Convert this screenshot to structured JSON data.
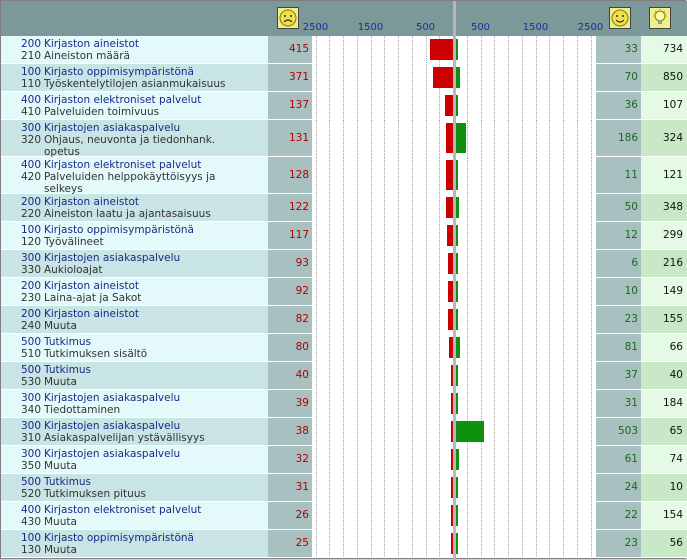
{
  "colors": {
    "header": "#7d9898",
    "label_light": "#e4fafa",
    "label_dark": "#c8e4e4",
    "neg_col": "#a8c0c0",
    "pos_col": "#a8c0c0",
    "tot_light": "#e4fae4",
    "tot_dark": "#c8e8c8",
    "neg_bar": "#cc0000",
    "pos_bar": "#109010"
  },
  "icons": {
    "negative": "sad-face-icon",
    "positive": "happy-face-icon",
    "total": "lightbulb-icon"
  },
  "chart_data": {
    "type": "bar",
    "orientation": "horizontal-diverging",
    "axis_ticks": [
      {
        "label": "2500",
        "value": -2500
      },
      {
        "label": "1500",
        "value": -1500
      },
      {
        "label": "500",
        "value": -500
      },
      {
        "label": "500",
        "value": 500
      },
      {
        "label": "1500",
        "value": 1500
      },
      {
        "label": "2500",
        "value": 2500
      }
    ],
    "rows": [
      {
        "cat_code": "200",
        "cat": "Kirjaston aineistot",
        "sub_code": "210",
        "sub": [
          "Aineiston määrä"
        ],
        "neg": 415,
        "pos": 33,
        "total": 734
      },
      {
        "cat_code": "100",
        "cat": "Kirjasto oppimisympäristönä",
        "sub_code": "110",
        "sub": [
          "Työskentelytilojen asianmukaisuus"
        ],
        "neg": 371,
        "pos": 70,
        "total": 850
      },
      {
        "cat_code": "400",
        "cat": "Kirjaston elektroniset palvelut",
        "sub_code": "410",
        "sub": [
          "Palveluiden toimivuus"
        ],
        "neg": 137,
        "pos": 36,
        "total": 107
      },
      {
        "cat_code": "300",
        "cat": "Kirjastojen asiakaspalvelu",
        "sub_code": "320",
        "sub": [
          "Ohjaus, neuvonta ja tiedonhank.",
          "opetus"
        ],
        "neg": 131,
        "pos": 186,
        "total": 324
      },
      {
        "cat_code": "400",
        "cat": "Kirjaston elektroniset palvelut",
        "sub_code": "420",
        "sub": [
          "Palveluiden helppokäyttöisyys ja",
          "selkeys"
        ],
        "neg": 128,
        "pos": 11,
        "total": 121
      },
      {
        "cat_code": "200",
        "cat": "Kirjaston aineistot",
        "sub_code": "220",
        "sub": [
          "Aineiston laatu ja ajantasaisuus"
        ],
        "neg": 122,
        "pos": 50,
        "total": 348
      },
      {
        "cat_code": "100",
        "cat": "Kirjasto oppimisympäristönä",
        "sub_code": "120",
        "sub": [
          "Työvälineet"
        ],
        "neg": 117,
        "pos": 12,
        "total": 299
      },
      {
        "cat_code": "300",
        "cat": "Kirjastojen asiakaspalvelu",
        "sub_code": "330",
        "sub": [
          "Aukioloajat"
        ],
        "neg": 93,
        "pos": 6,
        "total": 216
      },
      {
        "cat_code": "200",
        "cat": "Kirjaston aineistot",
        "sub_code": "230",
        "sub": [
          "Laina-ajat ja Sakot"
        ],
        "neg": 92,
        "pos": 10,
        "total": 149
      },
      {
        "cat_code": "200",
        "cat": "Kirjaston aineistot",
        "sub_code": "240",
        "sub": [
          "Muuta"
        ],
        "neg": 82,
        "pos": 23,
        "total": 155
      },
      {
        "cat_code": "500",
        "cat": "Tutkimus",
        "sub_code": "510",
        "sub": [
          "Tutkimuksen sisältö"
        ],
        "neg": 80,
        "pos": 81,
        "total": 66
      },
      {
        "cat_code": "500",
        "cat": "Tutkimus",
        "sub_code": "530",
        "sub": [
          "Muuta"
        ],
        "neg": 40,
        "pos": 37,
        "total": 40
      },
      {
        "cat_code": "300",
        "cat": "Kirjastojen asiakaspalvelu",
        "sub_code": "340",
        "sub": [
          "Tiedottaminen"
        ],
        "neg": 39,
        "pos": 31,
        "total": 184
      },
      {
        "cat_code": "300",
        "cat": "Kirjastojen asiakaspalvelu",
        "sub_code": "310",
        "sub": [
          "Asiakaspalvelijan ystävällisyys"
        ],
        "neg": 38,
        "pos": 503,
        "total": 65
      },
      {
        "cat_code": "300",
        "cat": "Kirjastojen asiakaspalvelu",
        "sub_code": "350",
        "sub": [
          "Muuta"
        ],
        "neg": 32,
        "pos": 61,
        "total": 74
      },
      {
        "cat_code": "500",
        "cat": "Tutkimus",
        "sub_code": "520",
        "sub": [
          "Tutkimuksen pituus"
        ],
        "neg": 31,
        "pos": 24,
        "total": 10
      },
      {
        "cat_code": "400",
        "cat": "Kirjaston elektroniset palvelut",
        "sub_code": "430",
        "sub": [
          "Muuta"
        ],
        "neg": 26,
        "pos": 22,
        "total": 154
      },
      {
        "cat_code": "100",
        "cat": "Kirjasto oppimisympäristönä",
        "sub_code": "130",
        "sub": [
          "Muuta"
        ],
        "neg": 25,
        "pos": 23,
        "total": 56
      }
    ]
  }
}
